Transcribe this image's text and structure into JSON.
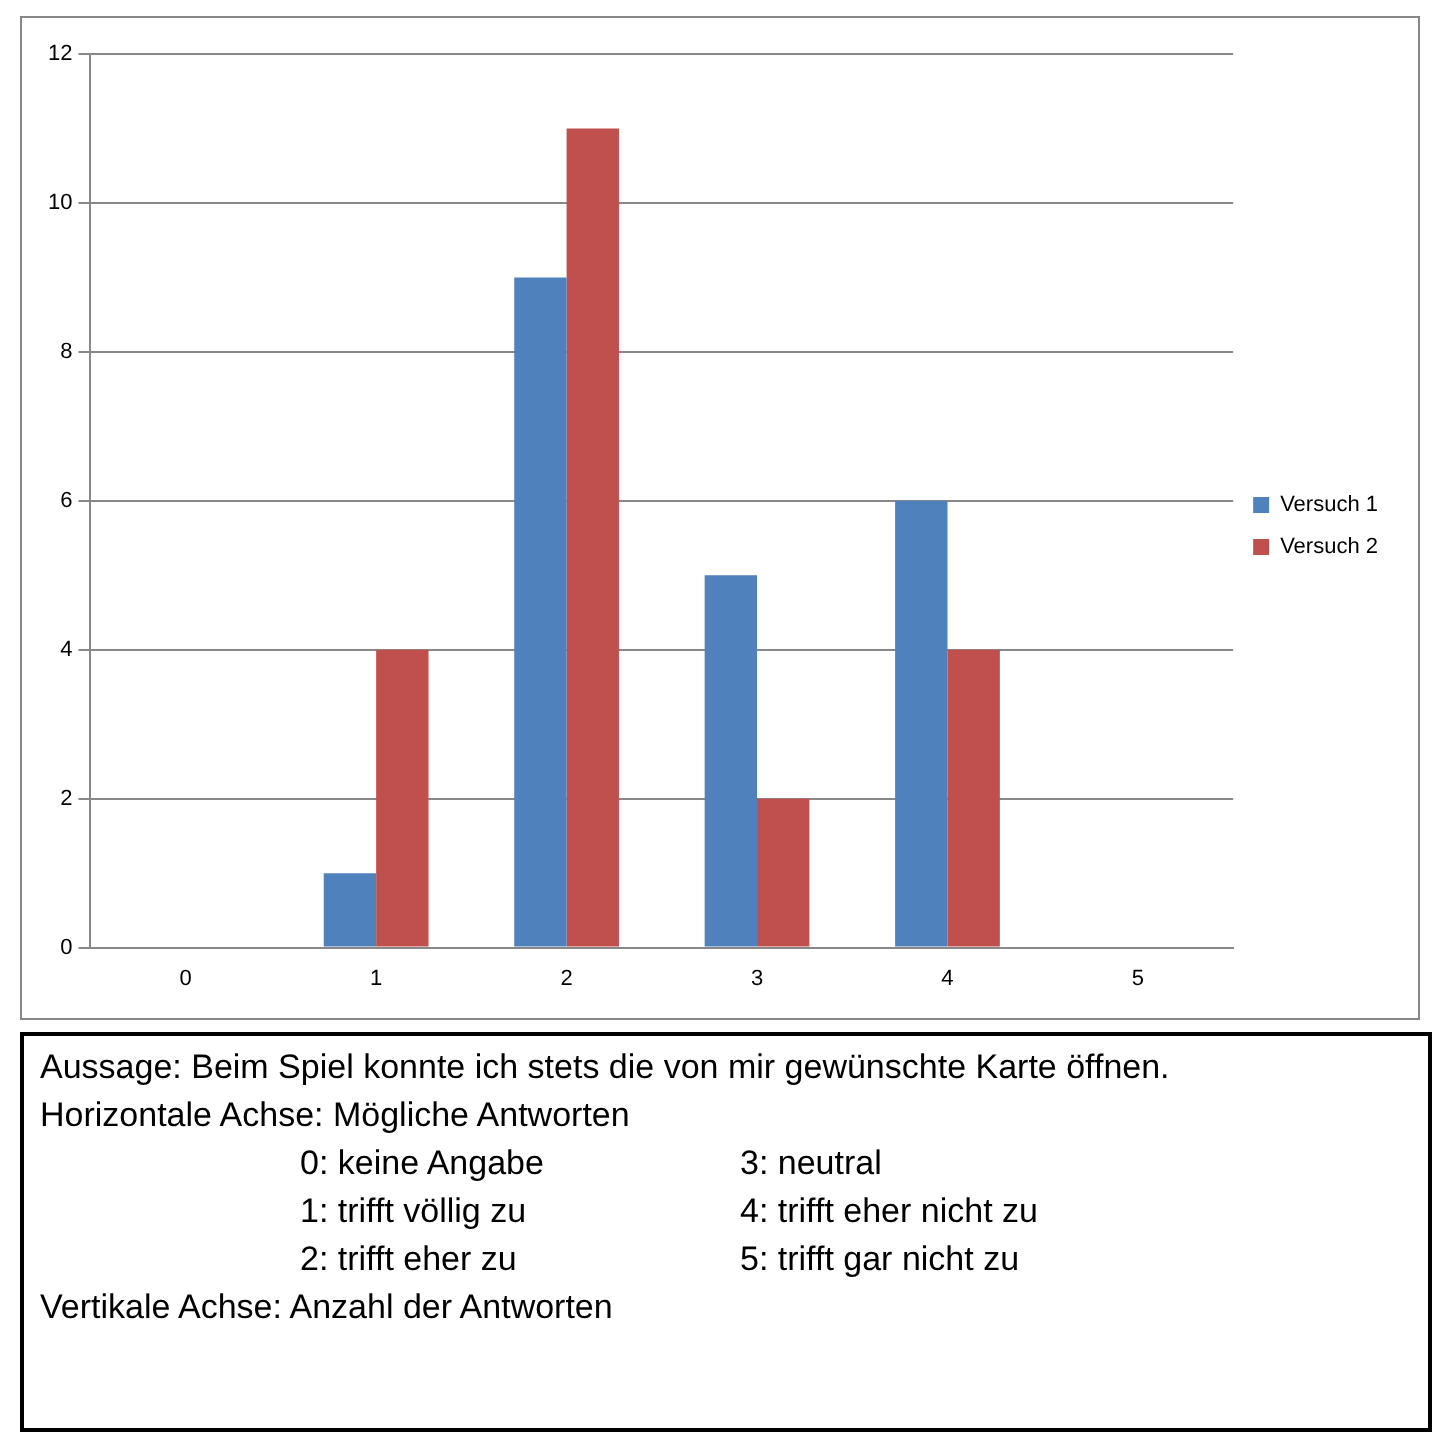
{
  "chart_data": {
    "type": "bar",
    "categories": [
      "0",
      "1",
      "2",
      "3",
      "4",
      "5"
    ],
    "series": [
      {
        "name": "Versuch 1",
        "color": "#4f81bd",
        "values": [
          0,
          1,
          9,
          5,
          6,
          0
        ]
      },
      {
        "name": "Versuch 2",
        "color": "#c0504d",
        "values": [
          0,
          4,
          11,
          2,
          4,
          0
        ]
      }
    ],
    "ylim": [
      0,
      12
    ],
    "yticks": [
      0,
      2,
      4,
      6,
      8,
      10,
      12
    ],
    "grid": "y",
    "legend": "right",
    "annotations": [
      "Aussage: Beim Spiel konnte ich stets die von mir gewünschte Karte öffnen.",
      "Horizontale Achse: Mögliche Antworten",
      "0: keine Angabe",
      "3: neutral",
      "1: trifft völlig zu",
      "4: trifft eher nicht zu",
      "2: trifft eher zu",
      "5: trifft gar nicht zu",
      "Vertikale Achse: Anzahl der Antworten"
    ]
  }
}
